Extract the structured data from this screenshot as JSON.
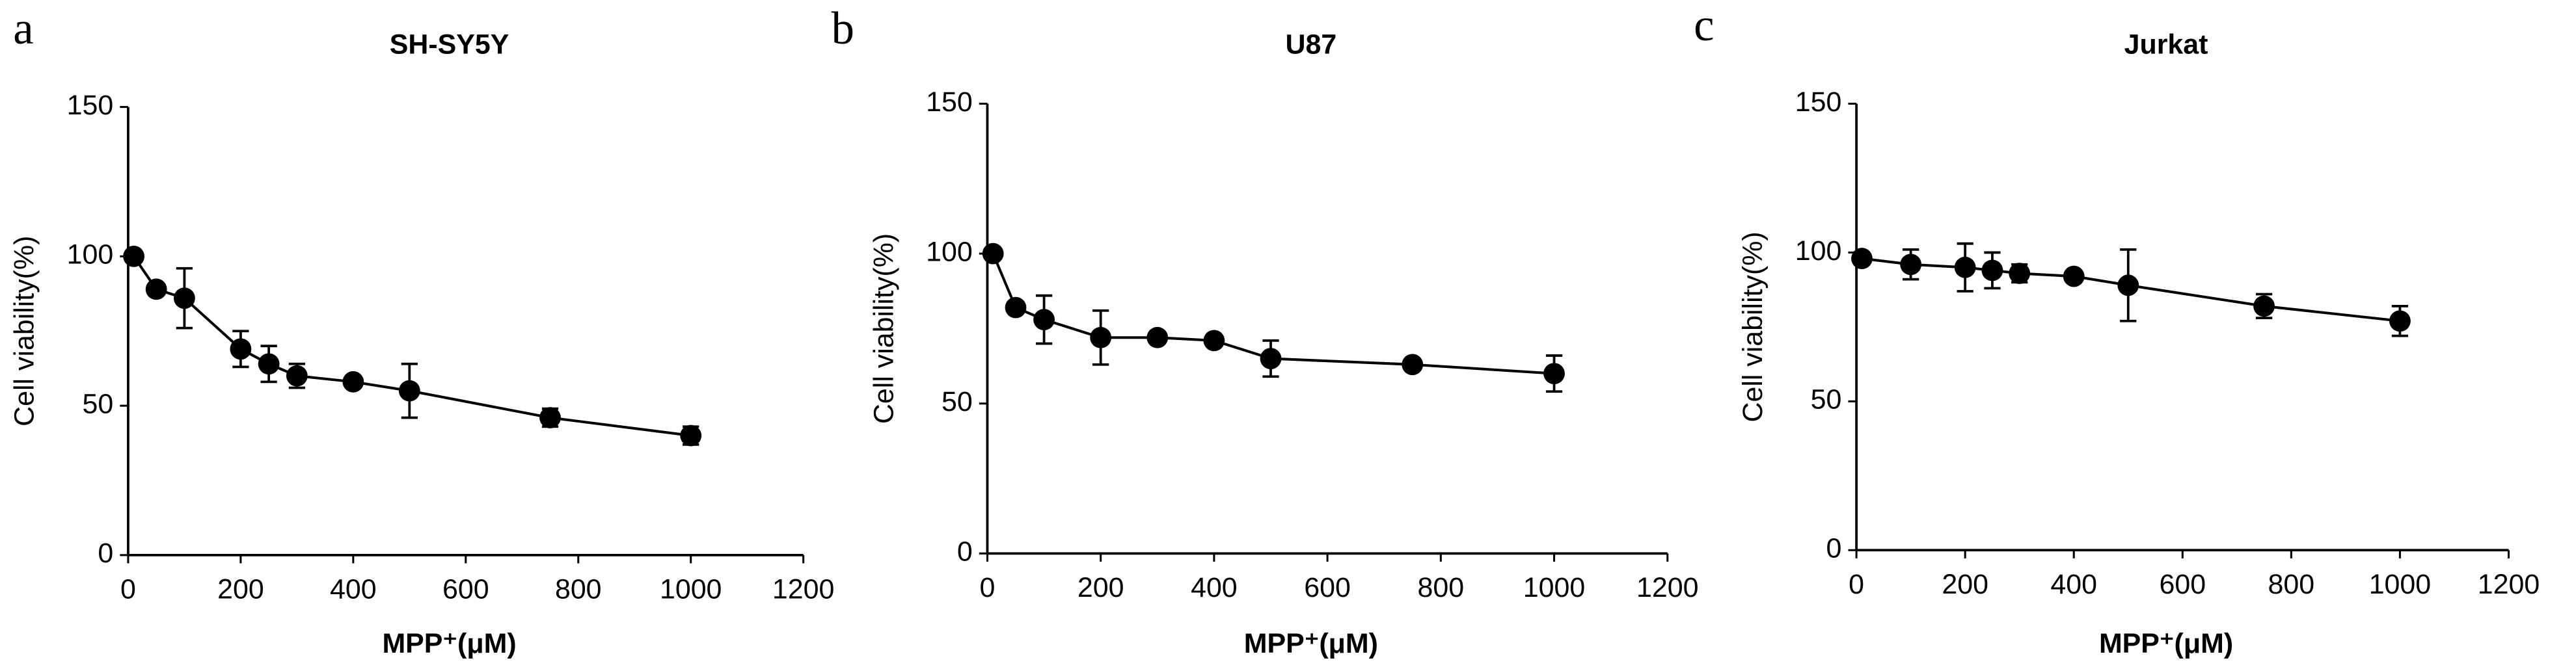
{
  "chart_data": [
    {
      "type": "line",
      "panel": "a",
      "title": "SH-SY5Y",
      "x_label": "MPP⁺(μM)",
      "y_label": "Cell viability(%)",
      "x": [
        10,
        50,
        100,
        200,
        250,
        300,
        400,
        500,
        750,
        1000
      ],
      "series": [
        {
          "name": "SH-SY5Y",
          "color": "#000000",
          "values": [
            100,
            89,
            86,
            69,
            64,
            60,
            58,
            55,
            46,
            40
          ],
          "errors": [
            1,
            1,
            10,
            6,
            6,
            4,
            1,
            9,
            3,
            3
          ]
        }
      ],
      "xlim": [
        0,
        1200
      ],
      "xticks": [
        0,
        200,
        400,
        600,
        800,
        1000,
        1200
      ],
      "ylim": [
        0,
        150
      ],
      "yticks": [
        0,
        50,
        100,
        150
      ]
    },
    {
      "type": "line",
      "panel": "b",
      "title": "U87",
      "x_label": "MPP⁺(μM)",
      "y_label": "Cell viability(%)",
      "x": [
        10,
        50,
        100,
        200,
        300,
        400,
        500,
        750,
        1000
      ],
      "series": [
        {
          "name": "U87",
          "color": "#000000",
          "values": [
            100,
            82,
            78,
            72,
            72,
            71,
            65,
            63,
            60
          ],
          "errors": [
            1,
            1,
            8,
            9,
            1,
            1,
            6,
            1,
            6
          ]
        }
      ],
      "xlim": [
        0,
        1200
      ],
      "xticks": [
        0,
        200,
        400,
        600,
        800,
        1000,
        1200
      ],
      "ylim": [
        0,
        150
      ],
      "yticks": [
        0,
        50,
        100,
        150
      ]
    },
    {
      "type": "line",
      "panel": "c",
      "title": "Jurkat",
      "x_label": "MPP⁺(μM)",
      "y_label": "Cell viability(%)",
      "x": [
        10,
        100,
        200,
        250,
        300,
        400,
        500,
        750,
        1000
      ],
      "series": [
        {
          "name": "Jurkat",
          "color": "#000000",
          "values": [
            98,
            96,
            95,
            94,
            93,
            92,
            89,
            82,
            77
          ],
          "errors": [
            2,
            5,
            8,
            6,
            3,
            1,
            12,
            4,
            5
          ]
        }
      ],
      "xlim": [
        0,
        1200
      ],
      "xticks": [
        0,
        200,
        400,
        600,
        800,
        1000,
        1200
      ],
      "ylim": [
        0,
        150
      ],
      "yticks": [
        0,
        50,
        100,
        150
      ]
    }
  ]
}
